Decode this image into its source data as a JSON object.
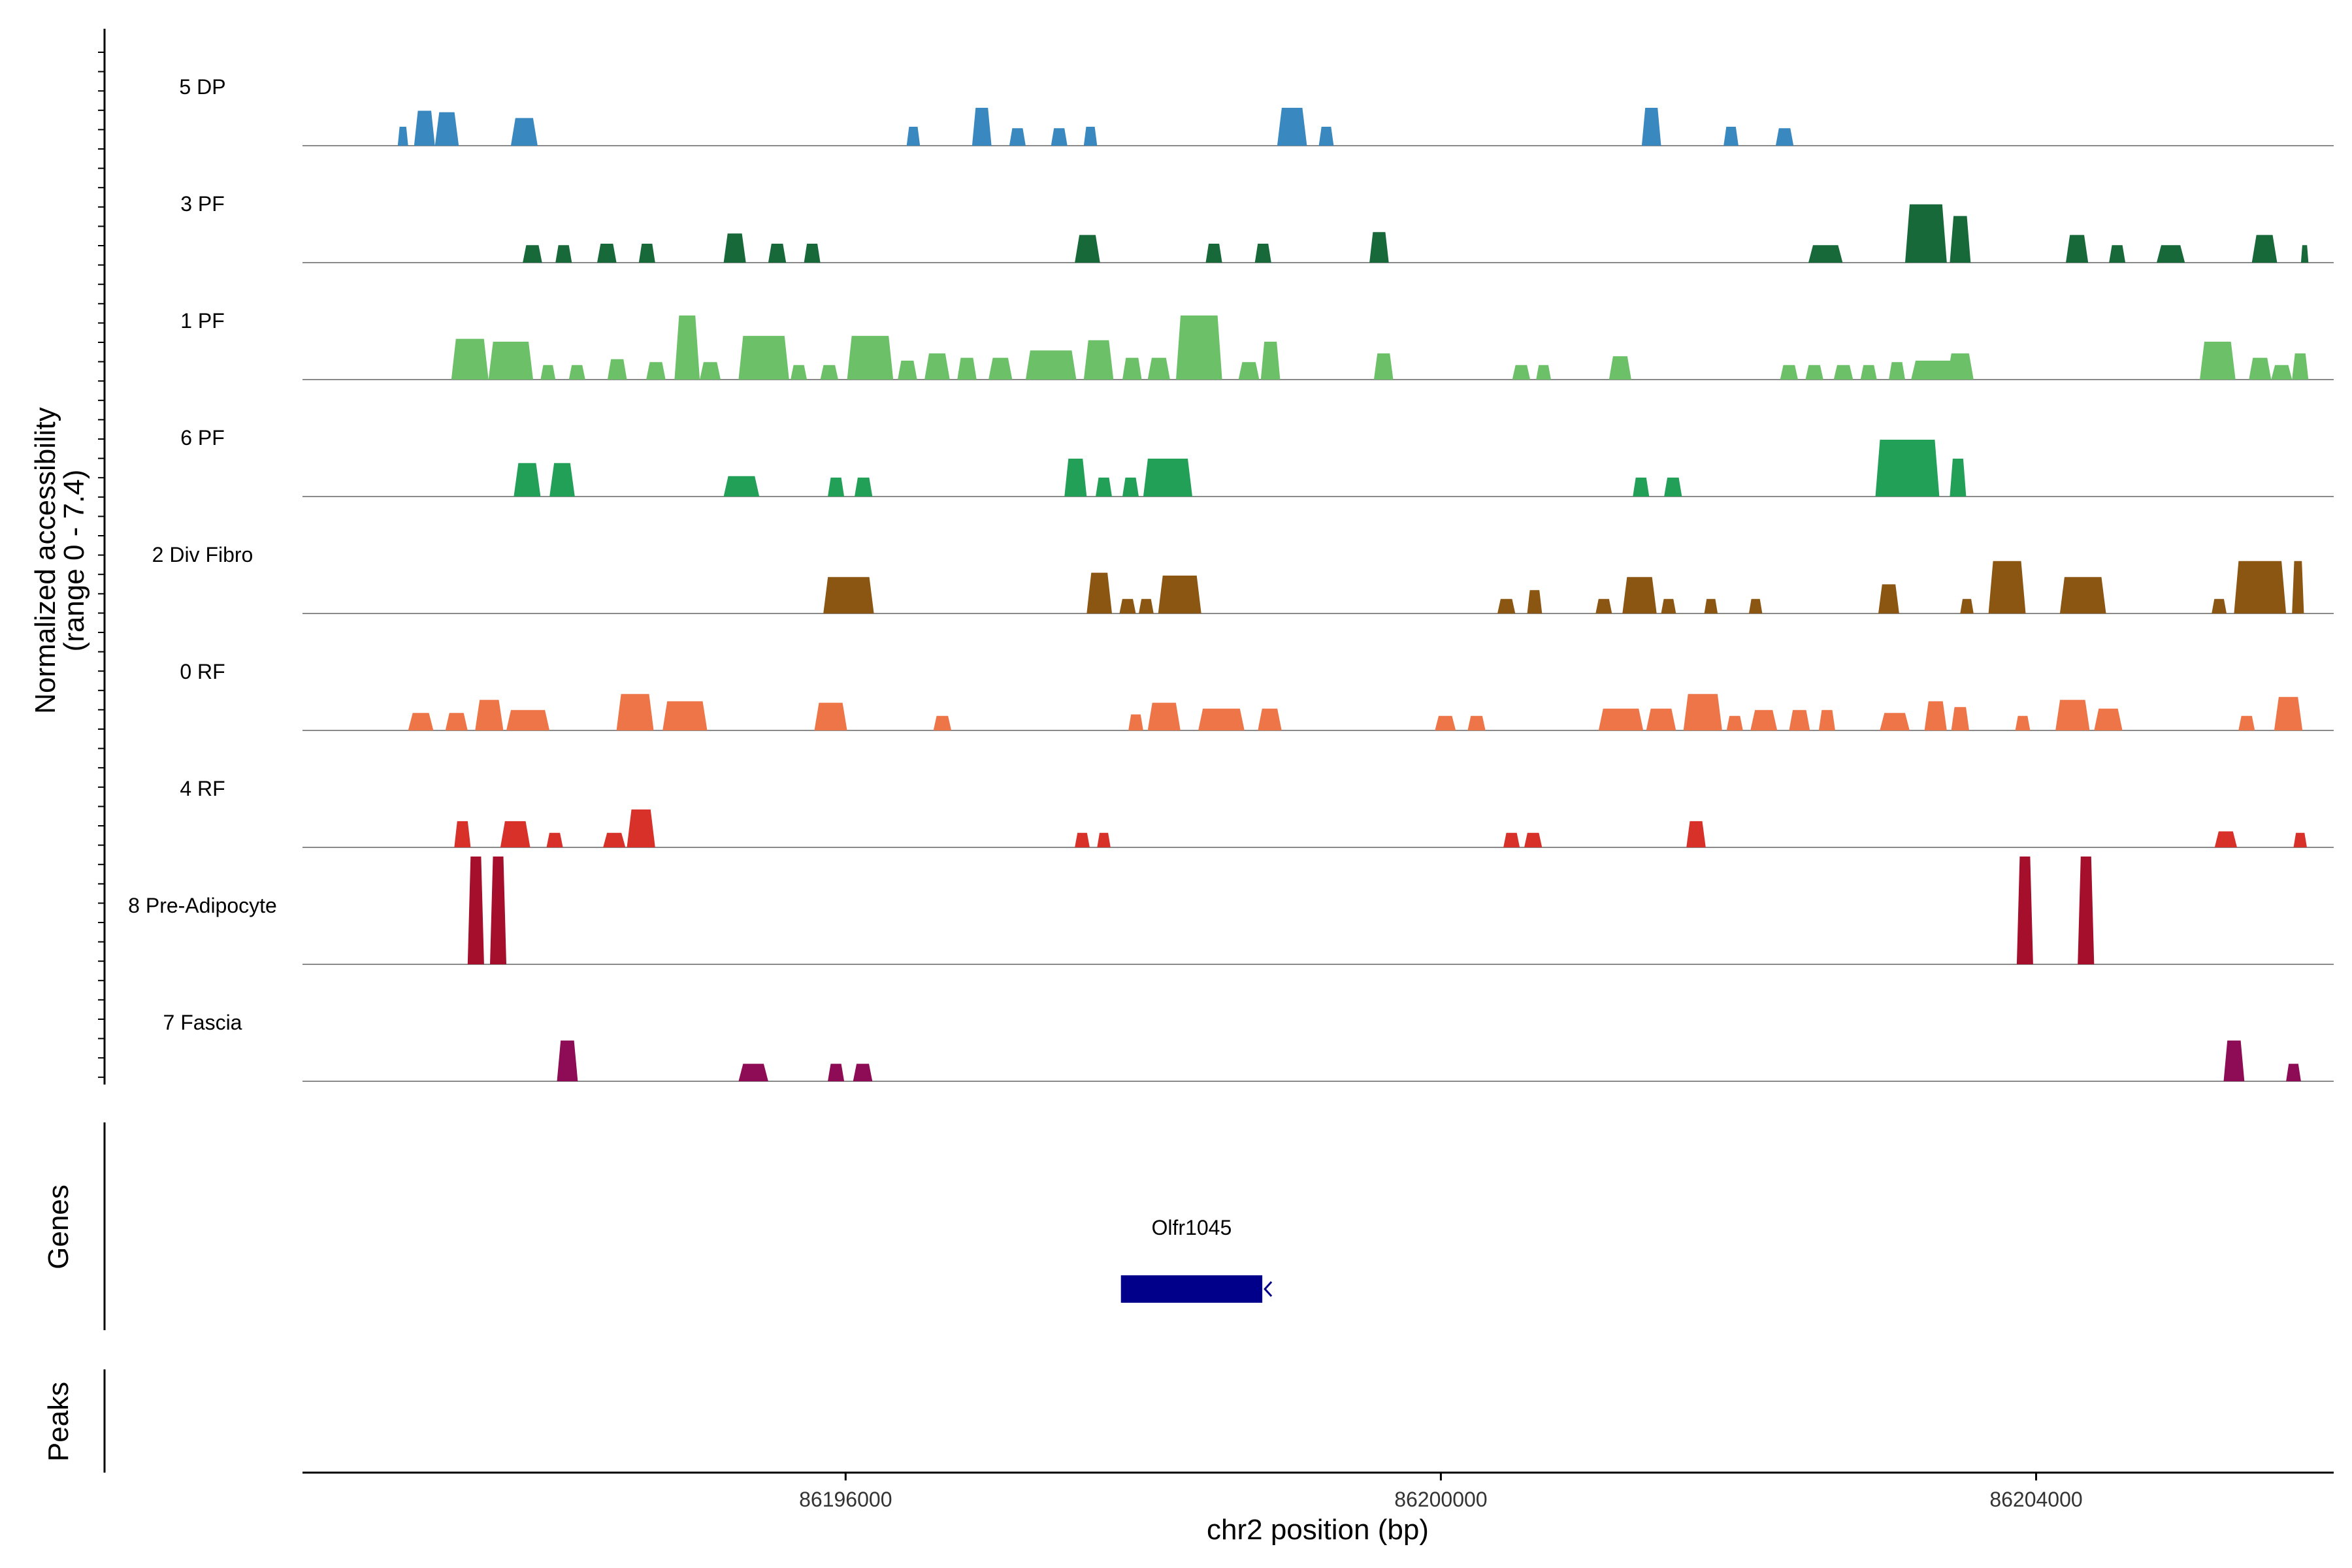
{
  "chart_data": {
    "type": "area",
    "title": "",
    "xlabel": "chr2 position (bp)",
    "ylabel": "Normalized accessibility",
    "ylabel_range": "(range 0 - 7.4)",
    "genes_label": "Genes",
    "peaks_label": "Peaks",
    "xlim": [
      86192350,
      86206000
    ],
    "ylim": [
      0,
      7.4
    ],
    "xticks": [
      86196000,
      86200000,
      86204000
    ],
    "xtick_labels": [
      "86196000",
      "86200000",
      "86204000"
    ],
    "tracks": [
      {
        "name": "5 DP",
        "color": "#3a88c0",
        "peaks": [
          [
            86192990,
            86193060,
            1.3
          ],
          [
            86193100,
            86193240,
            2.4
          ],
          [
            86193240,
            86193400,
            2.3
          ],
          [
            86193750,
            86193930,
            1.9
          ],
          [
            86196410,
            86196500,
            1.3
          ],
          [
            86196850,
            86196980,
            2.6
          ],
          [
            86197100,
            86197210,
            1.2
          ],
          [
            86197380,
            86197490,
            1.2
          ],
          [
            86197600,
            86197690,
            1.3
          ],
          [
            86198900,
            86199100,
            2.6
          ],
          [
            86199180,
            86199280,
            1.3
          ],
          [
            86201350,
            86201480,
            2.6
          ],
          [
            86201900,
            86202000,
            1.3
          ],
          [
            86202250,
            86202370,
            1.2
          ]
        ]
      },
      {
        "name": "3 PF",
        "color": "#17693a",
        "peaks": [
          [
            86193830,
            86193960,
            1.2
          ],
          [
            86194050,
            86194160,
            1.2
          ],
          [
            86194330,
            86194460,
            1.3
          ],
          [
            86194610,
            86194720,
            1.3
          ],
          [
            86195180,
            86195330,
            2.0
          ],
          [
            86195480,
            86195600,
            1.3
          ],
          [
            86195720,
            86195830,
            1.3
          ],
          [
            86197540,
            86197710,
            1.9
          ],
          [
            86198420,
            86198530,
            1.3
          ],
          [
            86198750,
            86198860,
            1.3
          ],
          [
            86199520,
            86199650,
            2.1
          ],
          [
            86202470,
            86202700,
            1.2
          ],
          [
            86203120,
            86203400,
            4.0
          ],
          [
            86203420,
            86203560,
            3.2
          ],
          [
            86204200,
            86204350,
            1.9
          ],
          [
            86204490,
            86204600,
            1.2
          ],
          [
            86204810,
            86205000,
            1.2
          ],
          [
            86205450,
            86205620,
            1.9
          ],
          [
            86205780,
            86205830,
            1.2
          ]
        ]
      },
      {
        "name": "1 PF",
        "color": "#6cc068",
        "peaks": [
          [
            86193350,
            86193600,
            2.8
          ],
          [
            86193600,
            86193900,
            2.6
          ],
          [
            86193950,
            86194050,
            1.0
          ],
          [
            86194140,
            86194250,
            1.0
          ],
          [
            86194400,
            86194530,
            1.4
          ],
          [
            86194660,
            86194790,
            1.2
          ],
          [
            86194850,
            86195020,
            4.4
          ],
          [
            86195020,
            86195160,
            1.2
          ],
          [
            86195280,
            86195620,
            3.0
          ],
          [
            86195630,
            86195740,
            1.0
          ],
          [
            86195830,
            86195950,
            1.0
          ],
          [
            86196010,
            86196320,
            3.0
          ],
          [
            86196350,
            86196480,
            1.3
          ],
          [
            86196530,
            86196700,
            1.8
          ],
          [
            86196750,
            86196880,
            1.5
          ],
          [
            86196960,
            86197120,
            1.5
          ],
          [
            86197210,
            86197550,
            2.0
          ],
          [
            86197600,
            86197800,
            2.7
          ],
          [
            86197860,
            86197990,
            1.5
          ],
          [
            86198030,
            86198180,
            1.5
          ],
          [
            86198220,
            86198530,
            4.4
          ],
          [
            86198640,
            86198780,
            1.2
          ],
          [
            86198790,
            86198920,
            2.6
          ],
          [
            86199550,
            86199680,
            1.8
          ],
          [
            86200480,
            86200600,
            1.0
          ],
          [
            86200640,
            86200740,
            1.0
          ],
          [
            86201130,
            86201280,
            1.6
          ],
          [
            86202280,
            86202400,
            1.0
          ],
          [
            86202450,
            86202570,
            1.0
          ],
          [
            86202640,
            86202770,
            1.0
          ],
          [
            86202820,
            86202930,
            1.0
          ],
          [
            86203010,
            86203120,
            1.2
          ],
          [
            86203160,
            86203470,
            1.3
          ],
          [
            86203400,
            86203580,
            1.8
          ],
          [
            86205100,
            86205340,
            2.6
          ],
          [
            86205430,
            86205580,
            1.5
          ],
          [
            86205580,
            86205720,
            1.0
          ],
          [
            86205720,
            86205830,
            1.8
          ]
        ]
      },
      {
        "name": "6 PF",
        "color": "#22a058",
        "peaks": [
          [
            86193770,
            86193950,
            2.3
          ],
          [
            86194010,
            86194180,
            2.3
          ],
          [
            86195180,
            86195420,
            1.4
          ],
          [
            86195880,
            86195990,
            1.3
          ],
          [
            86196060,
            86196180,
            1.3
          ],
          [
            86197470,
            86197620,
            2.6
          ],
          [
            86197680,
            86197790,
            1.3
          ],
          [
            86197860,
            86197970,
            1.3
          ],
          [
            86198000,
            86198330,
            2.6
          ],
          [
            86201290,
            86201400,
            1.3
          ],
          [
            86201500,
            86201620,
            1.3
          ],
          [
            86202920,
            86203350,
            3.9
          ],
          [
            86203420,
            86203530,
            2.6
          ]
        ]
      },
      {
        "name": "2 Div Fibro",
        "color": "#8b5512",
        "peaks": [
          [
            86195850,
            86196190,
            2.5
          ],
          [
            86197620,
            86197790,
            2.8
          ],
          [
            86197840,
            86197950,
            1.0
          ],
          [
            86197970,
            86198070,
            1.0
          ],
          [
            86198100,
            86198390,
            2.6
          ],
          [
            86200380,
            86200500,
            1.0
          ],
          [
            86200580,
            86200680,
            1.6
          ],
          [
            86201040,
            86201150,
            1.0
          ],
          [
            86201220,
            86201450,
            2.5
          ],
          [
            86201480,
            86201580,
            1.0
          ],
          [
            86201770,
            86201860,
            1.0
          ],
          [
            86202070,
            86202160,
            1.0
          ],
          [
            86202940,
            86203080,
            2.0
          ],
          [
            86203490,
            86203580,
            1.0
          ],
          [
            86203680,
            86203930,
            3.6
          ],
          [
            86204160,
            86204470,
            2.5
          ],
          [
            86205180,
            86205280,
            1.0
          ],
          [
            86205330,
            86205680,
            3.6
          ],
          [
            86205720,
            86205800,
            3.6
          ]
        ]
      },
      {
        "name": "0 RF",
        "color": "#ee7548",
        "peaks": [
          [
            86193060,
            86193230,
            1.2
          ],
          [
            86193310,
            86193460,
            1.2
          ],
          [
            86193510,
            86193700,
            2.1
          ],
          [
            86193720,
            86194010,
            1.4
          ],
          [
            86194460,
            86194710,
            2.5
          ],
          [
            86194770,
            86195070,
            2.0
          ],
          [
            86195790,
            86196010,
            1.9
          ],
          [
            86196590,
            86196710,
            1.0
          ],
          [
            86197900,
            86198000,
            1.1
          ],
          [
            86198030,
            86198250,
            1.9
          ],
          [
            86198370,
            86198680,
            1.5
          ],
          [
            86198770,
            86198930,
            1.5
          ],
          [
            86199960,
            86200100,
            1.0
          ],
          [
            86200180,
            86200300,
            1.0
          ],
          [
            86201060,
            86201360,
            1.5
          ],
          [
            86201380,
            86201580,
            1.5
          ],
          [
            86201630,
            86201890,
            2.5
          ],
          [
            86201920,
            86202030,
            1.0
          ],
          [
            86202080,
            86202260,
            1.4
          ],
          [
            86202340,
            86202480,
            1.4
          ],
          [
            86202540,
            86202650,
            1.4
          ],
          [
            86202950,
            86203150,
            1.2
          ],
          [
            86203250,
            86203400,
            2.0
          ],
          [
            86203430,
            86203550,
            1.6
          ],
          [
            86203860,
            86203960,
            1.0
          ],
          [
            86204130,
            86204360,
            2.1
          ],
          [
            86204390,
            86204580,
            1.5
          ],
          [
            86205360,
            86205470,
            1.0
          ],
          [
            86205600,
            86205790,
            2.3
          ]
        ]
      },
      {
        "name": "4 RF",
        "color": "#d7312a",
        "peaks": [
          [
            86193370,
            86193480,
            1.8
          ],
          [
            86193680,
            86193880,
            1.8
          ],
          [
            86193990,
            86194100,
            1.0
          ],
          [
            86194370,
            86194520,
            1.0
          ],
          [
            86194530,
            86194720,
            2.6
          ],
          [
            86197540,
            86197640,
            1.0
          ],
          [
            86197690,
            86197780,
            1.0
          ],
          [
            86200420,
            86200530,
            1.0
          ],
          [
            86200560,
            86200680,
            1.0
          ],
          [
            86201650,
            86201780,
            1.8
          ],
          [
            86205200,
            86205350,
            1.1
          ],
          [
            86205730,
            86205820,
            1.0
          ]
        ]
      },
      {
        "name": "8 Pre-Adipocyte",
        "color": "#a50f2c",
        "peaks": [
          [
            86193460,
            86193570,
            7.4
          ],
          [
            86193610,
            86193720,
            7.4
          ],
          [
            86203870,
            86203980,
            7.4
          ],
          [
            86204280,
            86204390,
            7.4
          ]
        ]
      },
      {
        "name": "7 Fascia",
        "color": "#8e0b56",
        "peaks": [
          [
            86194060,
            86194200,
            2.8
          ],
          [
            86195280,
            86195480,
            1.2
          ],
          [
            86195880,
            86195990,
            1.2
          ],
          [
            86196050,
            86196180,
            1.2
          ],
          [
            86205260,
            86205400,
            2.8
          ],
          [
            86205680,
            86205780,
            1.2
          ]
        ]
      }
    ],
    "genes": [
      {
        "name": "Olfr1045",
        "start": 86197850,
        "end": 86198800,
        "strand": "-",
        "color": "#00008b"
      }
    ]
  }
}
